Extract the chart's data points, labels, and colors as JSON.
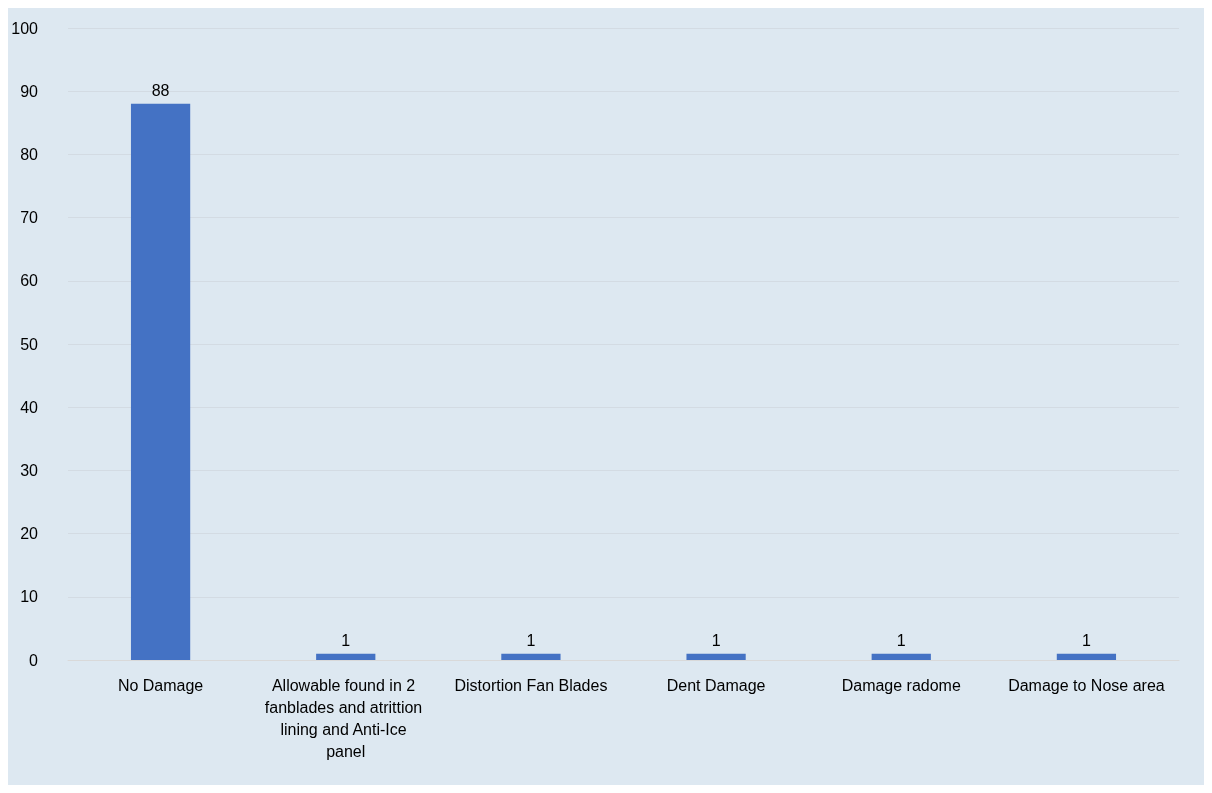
{
  "chart_data": {
    "type": "bar",
    "categories": [
      "No Damage",
      "Allowable found in 2 fanblades and atrittion lining and Anti-Ice panel",
      "Distortion Fan Blades",
      "Dent Damage",
      "Damage radome",
      "Damage to Nose area"
    ],
    "values": [
      88,
      1,
      1,
      1,
      1,
      1
    ],
    "color": "#4472c4",
    "ylim": [
      0,
      100
    ],
    "yticks": [
      0,
      10,
      20,
      30,
      40,
      50,
      60,
      70,
      80,
      90,
      100
    ],
    "grid": "y",
    "data_labels": true
  }
}
